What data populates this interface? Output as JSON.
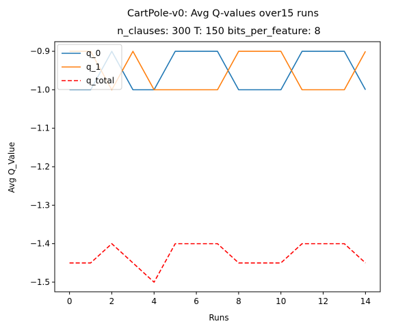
{
  "chart_data": {
    "type": "line",
    "title": "CartPole-v0: Avg Q-values over15 runs",
    "subtitle": "n_clauses: 300 T: 150 bits_per_feature: 8",
    "xlabel": "Runs",
    "ylabel": "Avg Q_Value",
    "xlim": [
      -0.7,
      14.7
    ],
    "ylim": [
      -1.525,
      -0.875
    ],
    "xticks": [
      0,
      2,
      4,
      6,
      8,
      10,
      12,
      14
    ],
    "xtick_labels": [
      "0",
      "2",
      "4",
      "6",
      "8",
      "10",
      "12",
      "14"
    ],
    "yticks": [
      -1.5,
      -1.4,
      -1.3,
      -1.2,
      -1.1,
      -1.0,
      -0.9
    ],
    "ytick_labels": [
      "−1.5",
      "−1.4",
      "−1.3",
      "−1.2",
      "−1.1",
      "−1.0",
      "−0.9"
    ],
    "x": [
      0,
      1,
      2,
      3,
      4,
      5,
      6,
      7,
      8,
      9,
      10,
      11,
      12,
      13,
      14
    ],
    "grid": false,
    "legend_position": "top-left",
    "series": [
      {
        "name": "q_0",
        "color": "#1f77b4",
        "dash": "solid",
        "values": [
          -1.0,
          -1.0,
          -0.9,
          -1.0,
          -1.0,
          -0.9,
          -0.9,
          -0.9,
          -1.0,
          -1.0,
          -1.0,
          -0.9,
          -0.9,
          -0.9,
          -1.0
        ]
      },
      {
        "name": "q_1",
        "color": "#ff7f0e",
        "dash": "solid",
        "values": [
          -0.9,
          -0.9,
          -1.0,
          -0.9,
          -1.0,
          -1.0,
          -1.0,
          -1.0,
          -0.9,
          -0.9,
          -0.9,
          -1.0,
          -1.0,
          -1.0,
          -0.9
        ]
      },
      {
        "name": "q_total",
        "color": "#ff0000",
        "dash": "dashed",
        "values": [
          -1.45,
          -1.45,
          -1.4,
          -1.45,
          -1.5,
          -1.4,
          -1.4,
          -1.4,
          -1.45,
          -1.45,
          -1.45,
          -1.4,
          -1.4,
          -1.4,
          -1.45
        ]
      }
    ]
  }
}
